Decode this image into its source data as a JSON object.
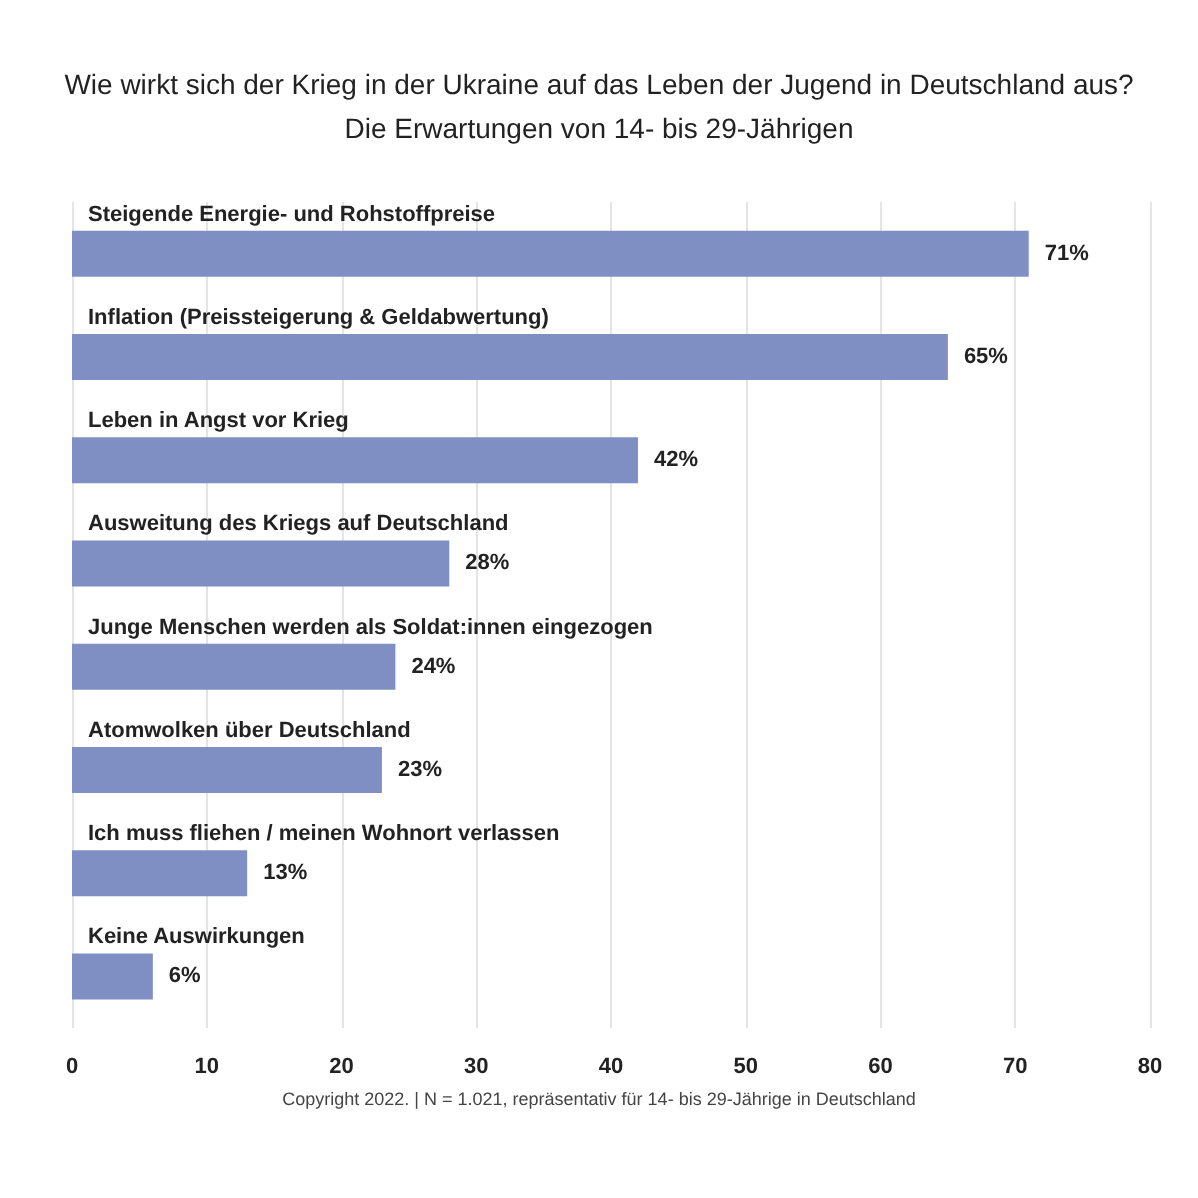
{
  "chart_data": {
    "type": "bar",
    "orientation": "horizontal",
    "title": "Wie wirkt sich der Krieg in der Ukraine auf das Leben der Jugend in Deutschland aus?",
    "subtitle": "Die Erwartungen von 14- bis 29-Jährigen",
    "categories": [
      "Steigende Energie- und Rohstoffpreise",
      "Inflation (Preissteigerung & Geldabwertung)",
      "Leben in Angst vor Krieg",
      "Ausweitung des Kriegs auf Deutschland",
      "Junge Menschen werden als Soldat:innen eingezogen",
      "Atomwolken über Deutschland",
      "Ich muss fliehen / meinen Wohnort verlassen",
      "Keine Auswirkungen"
    ],
    "values": [
      71,
      65,
      42,
      28,
      24,
      23,
      13,
      6
    ],
    "value_labels": [
      "71%",
      "65%",
      "42%",
      "28%",
      "24%",
      "23%",
      "13%",
      "6%"
    ],
    "color": "#7f8fc4",
    "xlim": [
      0,
      80
    ],
    "xticks": [
      0,
      10,
      20,
      30,
      40,
      50,
      60,
      70,
      80
    ],
    "grid": "x",
    "annotations": [
      "Copyright 2022. | N = 1.021, repräsentativ für 14- bis 29-Jährige in Deutschland"
    ]
  }
}
